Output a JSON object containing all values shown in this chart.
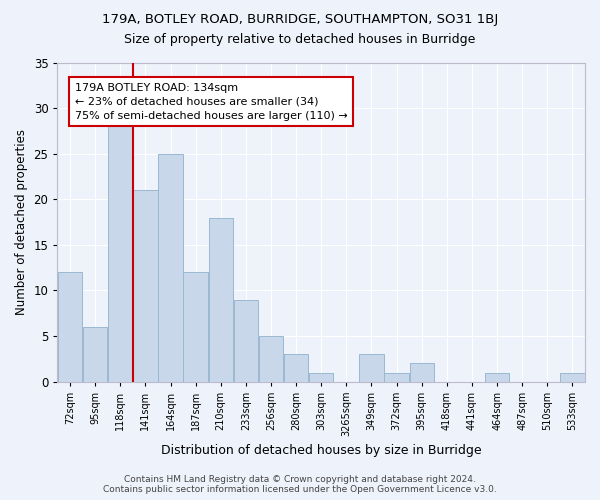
{
  "title1": "179A, BOTLEY ROAD, BURRIDGE, SOUTHAMPTON, SO31 1BJ",
  "title2": "Size of property relative to detached houses in Burridge",
  "xlabel": "Distribution of detached houses by size in Burridge",
  "ylabel": "Number of detached properties",
  "categories": [
    "72sqm",
    "95sqm",
    "118sqm",
    "141sqm",
    "164sqm",
    "187sqm",
    "210sqm",
    "233sqm",
    "256sqm",
    "280sqm",
    "303sqm",
    "3265sqm",
    "349sqm",
    "372sqm",
    "395sqm",
    "418sqm",
    "441sqm",
    "464sqm",
    "487sqm",
    "510sqm",
    "533sqm"
  ],
  "values": [
    12,
    6,
    28,
    21,
    25,
    12,
    18,
    9,
    5,
    3,
    1,
    0,
    3,
    1,
    2,
    0,
    0,
    1,
    0,
    0,
    1
  ],
  "bar_color": "#c8d8ea",
  "bar_edge_color": "#9ab8d0",
  "vline_x_index": 2.5,
  "vline_color": "#cc0000",
  "annotation_text": "179A BOTLEY ROAD: 134sqm\n← 23% of detached houses are smaller (34)\n75% of semi-detached houses are larger (110) →",
  "annotation_box_color": "#ffffff",
  "annotation_box_edge": "#cc0000",
  "footer1": "Contains HM Land Registry data © Crown copyright and database right 2024.",
  "footer2": "Contains public sector information licensed under the Open Government Licence v3.0.",
  "ylim": [
    0,
    35
  ],
  "yticks": [
    0,
    5,
    10,
    15,
    20,
    25,
    30,
    35
  ],
  "background_color": "#eef2fb",
  "grid_color": "#ffffff"
}
